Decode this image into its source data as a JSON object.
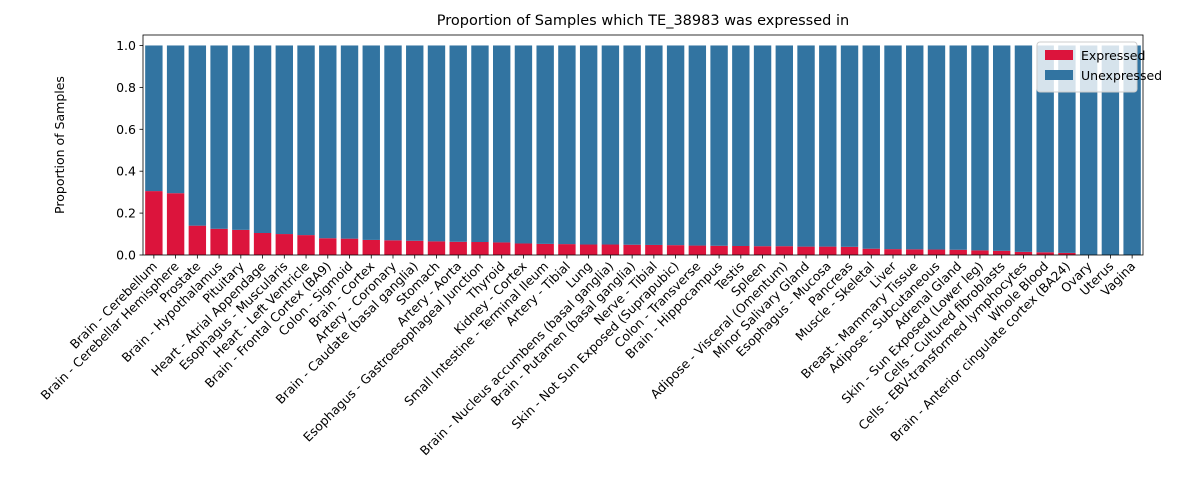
{
  "chart_data": {
    "type": "bar",
    "stacked": true,
    "title": "Proportion of Samples which TE_38983 was expressed in",
    "xlabel": "",
    "ylabel": "Proportion of Samples",
    "ylim": [
      0,
      1.05
    ],
    "yticks": [
      "0.0",
      "0.2",
      "0.4",
      "0.6",
      "0.8",
      "1.0"
    ],
    "legend_position": "top-right",
    "grid": false,
    "categories": [
      "Brain - Cerebellum",
      "Brain - Cerebellar Hemisphere",
      "Prostate",
      "Brain - Hypothalamus",
      "Pituitary",
      "Heart - Atrial Appendage",
      "Esophagus - Muscularis",
      "Heart - Left Ventricle",
      "Brain - Frontal Cortex (BA9)",
      "Colon - Sigmoid",
      "Brain - Cortex",
      "Artery - Coronary",
      "Brain - Caudate (basal ganglia)",
      "Stomach",
      "Artery - Aorta",
      "Esophagus - Gastroesophageal Junction",
      "Thyroid",
      "Kidney - Cortex",
      "Small Intestine - Terminal Ileum",
      "Artery - Tibial",
      "Lung",
      "Brain - Nucleus accumbens (basal ganglia)",
      "Brain - Putamen (basal ganglia)",
      "Nerve - Tibial",
      "Skin - Not Sun Exposed (Suprapubic)",
      "Colon - Transverse",
      "Brain - Hippocampus",
      "Testis",
      "Spleen",
      "Adipose - Visceral (Omentum)",
      "Minor Salivary Gland",
      "Esophagus - Mucosa",
      "Pancreas",
      "Muscle - Skeletal",
      "Liver",
      "Breast - Mammary Tissue",
      "Adipose - Subcutaneous",
      "Adrenal Gland",
      "Skin - Sun Exposed (Lower leg)",
      "Cells - Cultured fibroblasts",
      "Cells - EBV-transformed lymphocytes",
      "Whole Blood",
      "Brain - Anterior cingulate cortex (BA24)",
      "Ovary",
      "Uterus",
      "Vagina"
    ],
    "series": [
      {
        "name": "Expressed",
        "color": "#dc143c",
        "values": [
          0.305,
          0.295,
          0.14,
          0.125,
          0.12,
          0.105,
          0.1,
          0.095,
          0.08,
          0.078,
          0.072,
          0.07,
          0.068,
          0.065,
          0.063,
          0.062,
          0.06,
          0.055,
          0.053,
          0.052,
          0.05,
          0.05,
          0.049,
          0.048,
          0.047,
          0.045,
          0.044,
          0.043,
          0.042,
          0.042,
          0.04,
          0.04,
          0.039,
          0.03,
          0.028,
          0.027,
          0.026,
          0.025,
          0.022,
          0.02,
          0.015,
          0.013,
          0.01,
          0.0,
          0.0,
          0.0
        ]
      },
      {
        "name": "Unexpressed",
        "color": "#3274a1",
        "values": [
          0.695,
          0.705,
          0.86,
          0.875,
          0.88,
          0.895,
          0.9,
          0.905,
          0.92,
          0.922,
          0.928,
          0.93,
          0.932,
          0.935,
          0.937,
          0.938,
          0.94,
          0.945,
          0.947,
          0.948,
          0.95,
          0.95,
          0.951,
          0.952,
          0.953,
          0.955,
          0.956,
          0.957,
          0.958,
          0.958,
          0.96,
          0.96,
          0.961,
          0.97,
          0.972,
          0.973,
          0.974,
          0.975,
          0.978,
          0.98,
          0.985,
          0.987,
          0.99,
          1.0,
          1.0,
          1.0
        ]
      }
    ]
  }
}
